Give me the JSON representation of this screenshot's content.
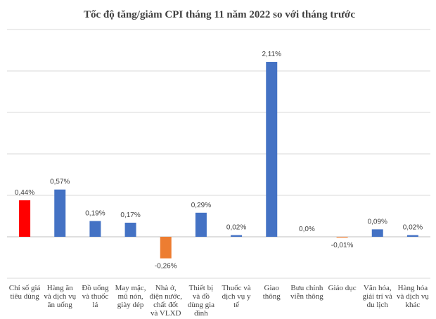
{
  "chart_data": {
    "type": "bar",
    "title": "Tốc độ tăng/giảm CPI tháng 11 năm 2022 so với tháng trước",
    "xlabel": "",
    "ylabel": "",
    "ylim": [
      -0.5,
      2.5
    ],
    "grid": true,
    "legend": "none",
    "categories": [
      [
        "Chỉ số giá",
        "tiêu dùng"
      ],
      [
        "Hàng ăn",
        "và dịch vụ",
        "ăn uống"
      ],
      [
        "Đồ uống",
        "và thuốc",
        "lá"
      ],
      [
        "May mặc,",
        "mũ nón,",
        "giày dép"
      ],
      [
        "Nhà ở,",
        "điện nước,",
        "chất đốt",
        "và VLXD"
      ],
      [
        "Thiết bị",
        "và đồ",
        "dùng gia",
        "đình"
      ],
      [
        "Thuốc và",
        "dịch vụ y",
        "tế"
      ],
      [
        "Giao",
        "thông"
      ],
      [
        "Bưu chính",
        "viễn thông"
      ],
      [
        "Giáo dục"
      ],
      [
        "Văn hóa,",
        "giải trí và",
        "du lịch"
      ],
      [
        "Hàng hóa",
        "và dịch vụ",
        "khác"
      ]
    ],
    "values": [
      0.44,
      0.57,
      0.19,
      0.17,
      -0.26,
      0.29,
      0.02,
      2.11,
      0.0,
      -0.01,
      0.09,
      0.02
    ],
    "data_labels": [
      "0,44%",
      "0,57%",
      "0,19%",
      "0,17%",
      "-0,26%",
      "0,29%",
      "0,02%",
      "2,11%",
      "0,0%",
      "-0,01%",
      "0,09%",
      "0,02%"
    ],
    "colors": [
      "#ff0000",
      "#4472c4",
      "#4472c4",
      "#4472c4",
      "#ed7d31",
      "#4472c4",
      "#4472c4",
      "#4472c4",
      "#4472c4",
      "#ed7d31",
      "#4472c4",
      "#4472c4"
    ]
  }
}
